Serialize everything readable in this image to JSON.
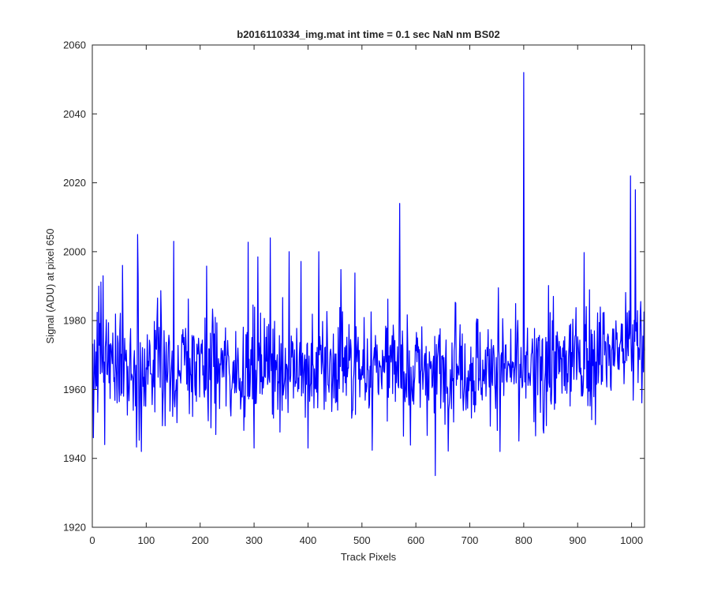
{
  "chart_data": {
    "type": "line",
    "title": "b2016110334_img.mat int time = 0.1 sec  NaN nm BS02",
    "xlabel": "Track Pixels",
    "ylabel": "Signal (ADU) at pixel 650",
    "xlim": [
      0,
      1024
    ],
    "ylim": [
      1920,
      2060
    ],
    "xticks": [
      0,
      100,
      200,
      300,
      400,
      500,
      600,
      700,
      800,
      900,
      1000
    ],
    "yticks": [
      1920,
      1940,
      1960,
      1980,
      2000,
      2020,
      2040,
      2060
    ],
    "grid": false,
    "box": true,
    "series": [
      {
        "color": "#0000ff",
        "mean": 1966,
        "n_points": 1024,
        "points_note_x": "track pixel index 1..1024",
        "highlights": [
          {
            "x": 2,
            "y": 1946
          },
          {
            "x": 12,
            "y": 1990
          },
          {
            "x": 20,
            "y": 1993
          },
          {
            "x": 23,
            "y": 1944
          },
          {
            "x": 84,
            "y": 2005
          },
          {
            "x": 91,
            "y": 1942
          },
          {
            "x": 151,
            "y": 2003
          },
          {
            "x": 300,
            "y": 1943
          },
          {
            "x": 330,
            "y": 2004
          },
          {
            "x": 365,
            "y": 2000
          },
          {
            "x": 400,
            "y": 1943
          },
          {
            "x": 420,
            "y": 2000
          },
          {
            "x": 570,
            "y": 2014
          },
          {
            "x": 636,
            "y": 1935
          },
          {
            "x": 756,
            "y": 1942
          },
          {
            "x": 800,
            "y": 2052
          },
          {
            "x": 950,
            "y": 1970
          },
          {
            "x": 998,
            "y": 2022
          },
          {
            "x": 1007,
            "y": 2018
          },
          {
            "x": 1012,
            "y": 1962
          }
        ]
      }
    ]
  }
}
